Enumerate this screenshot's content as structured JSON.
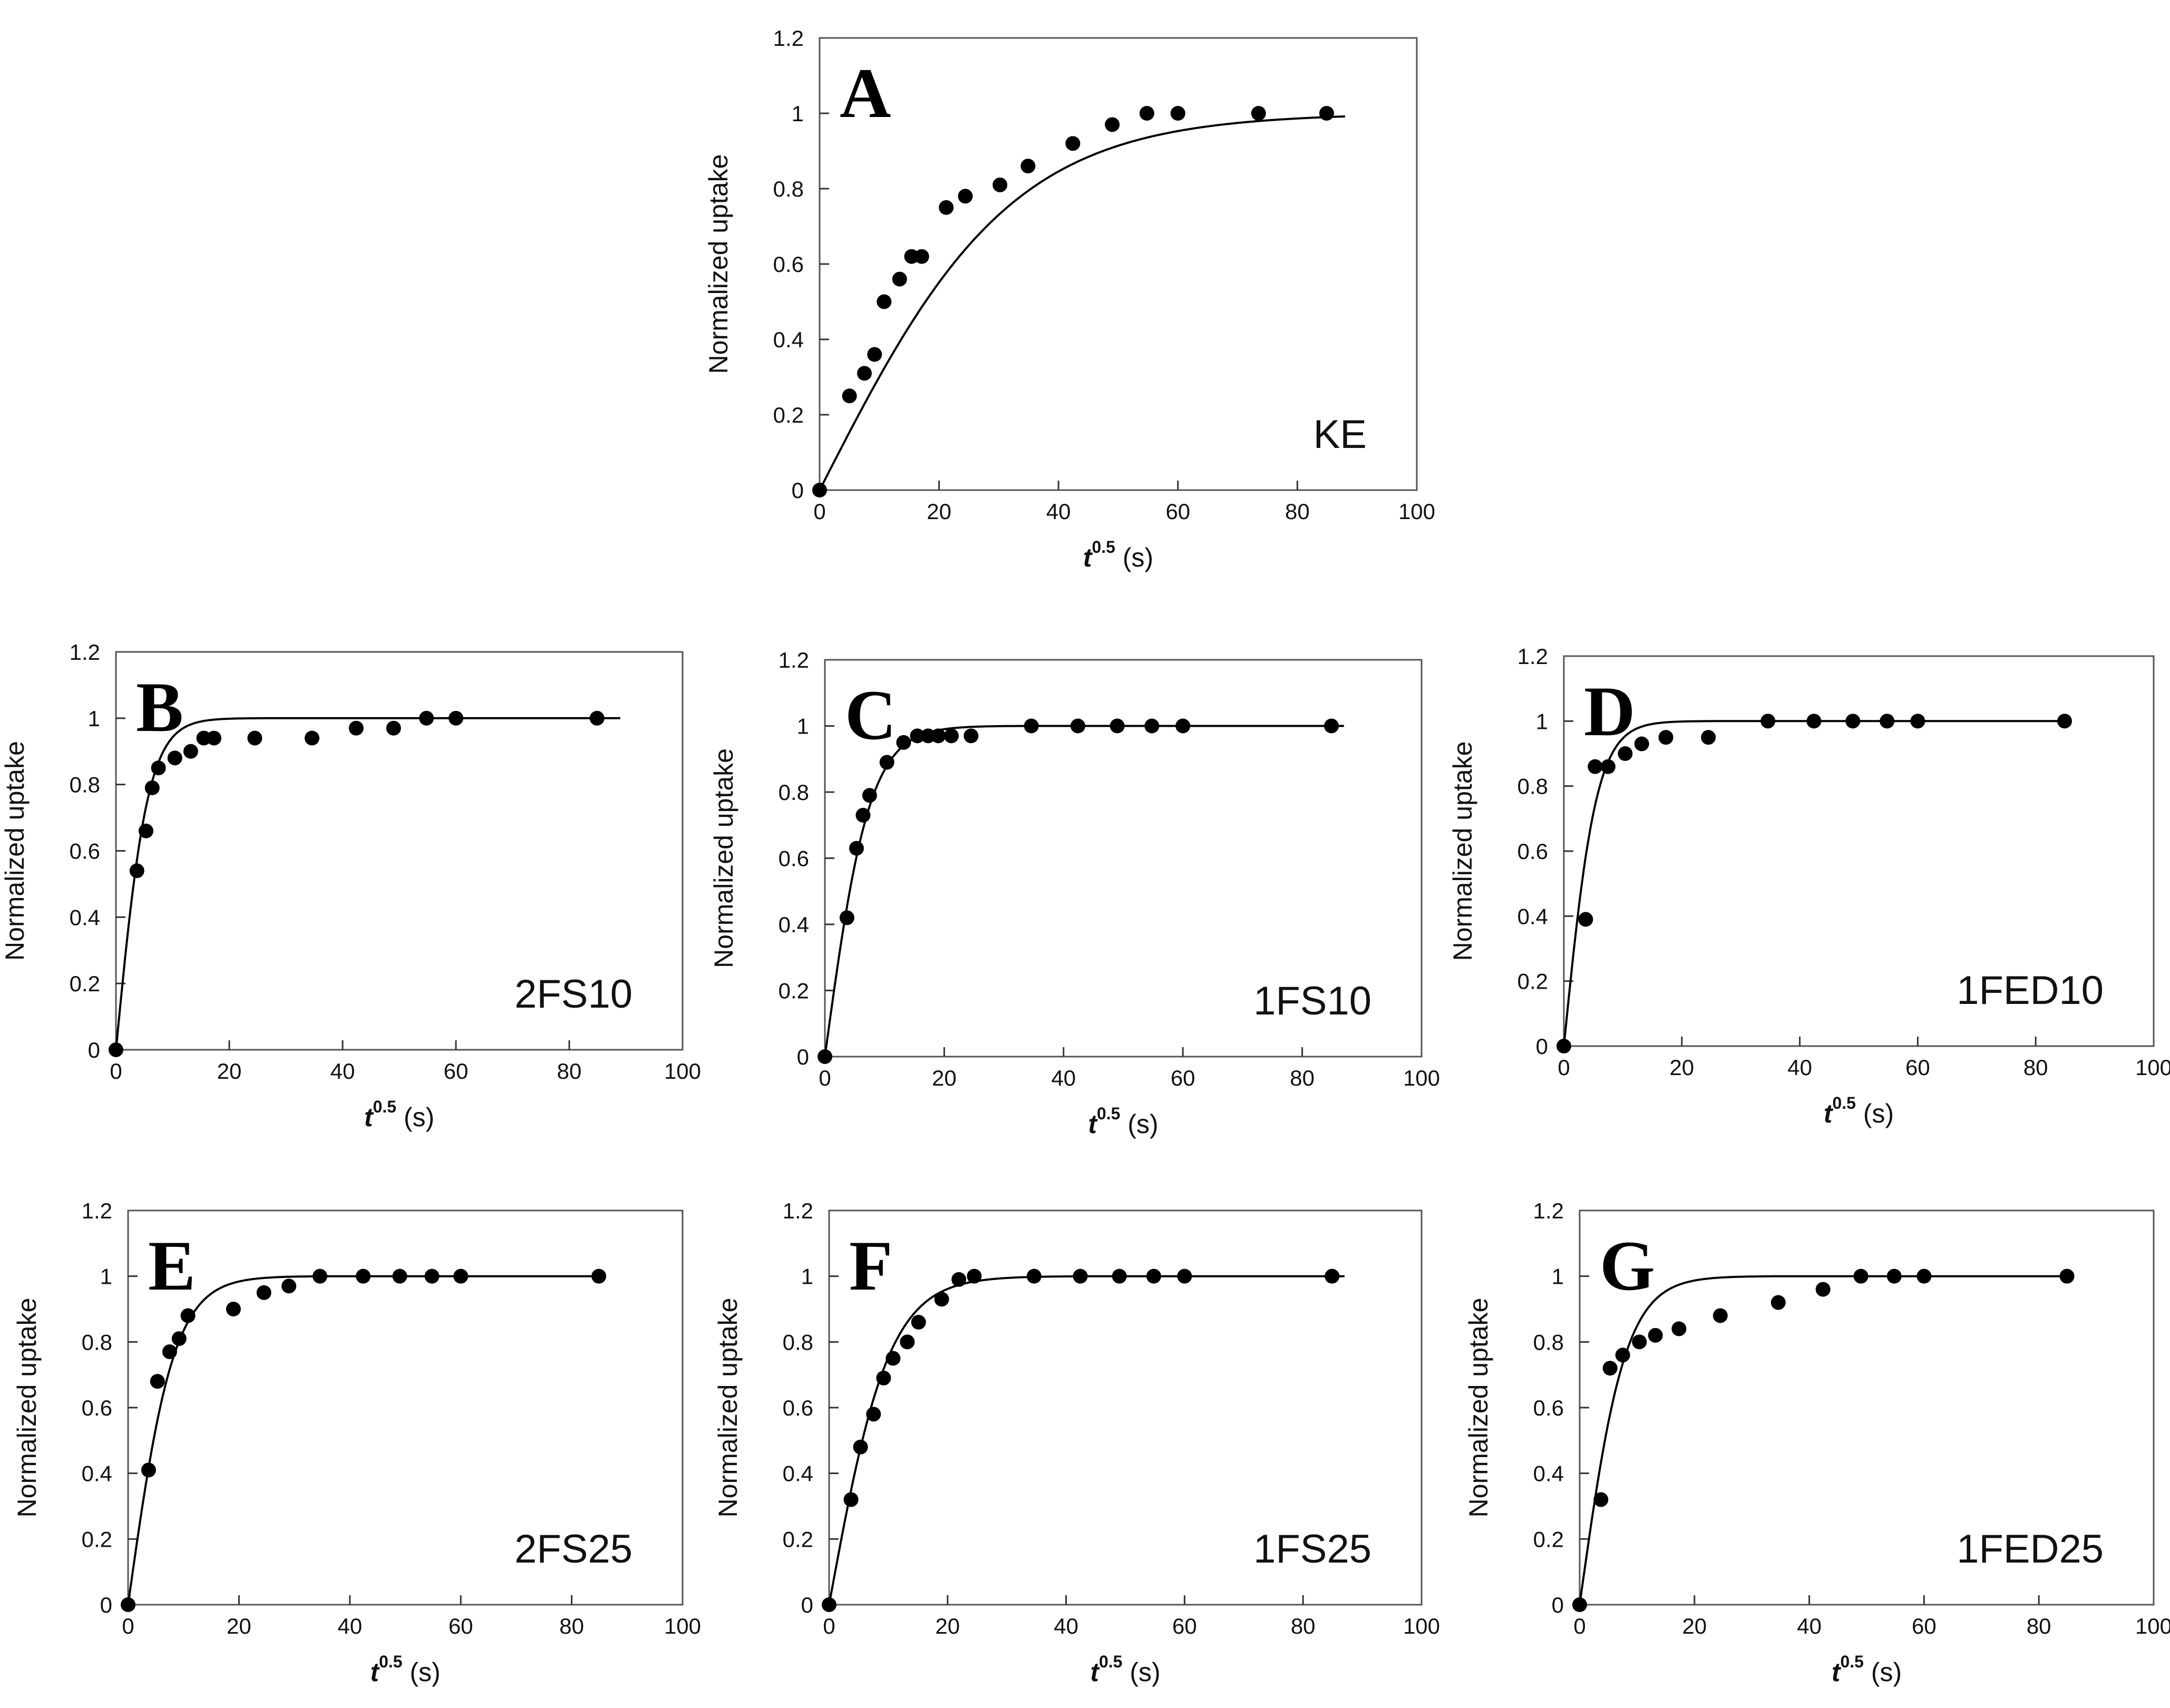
{
  "chart_data": [
    {
      "type": "scatter",
      "panel": "A",
      "label": "KE",
      "xlabel": "t",
      "xlabel_sup": "0.5",
      "xlabel_unit": " (s)",
      "ylabel": "Normalized uptake",
      "xlim": [
        0,
        100
      ],
      "ylim": [
        0,
        1.2
      ],
      "xticks": [
        "0",
        "20",
        "40",
        "60",
        "80",
        "100"
      ],
      "yticks": [
        "0",
        "0.2",
        "0.4",
        "0.6",
        "0.8",
        "1",
        "1.2"
      ],
      "series": [
        {
          "kind": "points",
          "x": [
            0,
            5,
            7.5,
            9.2,
            10.8,
            13.4,
            15.4,
            17.1,
            21.2,
            24.4,
            30.2,
            34.9,
            42.4,
            49,
            54.8,
            60,
            73.5,
            84.9
          ],
          "y": [
            0,
            0.25,
            0.31,
            0.36,
            0.5,
            0.56,
            0.62,
            0.62,
            0.75,
            0.78,
            0.81,
            0.86,
            0.92,
            0.97,
            1,
            1,
            1,
            1
          ]
        },
        {
          "kind": "fit",
          "k": 0.031,
          "xmax": 88
        }
      ]
    },
    {
      "type": "scatter",
      "panel": "B",
      "label": "2FS10",
      "xlabel": "t",
      "xlabel_sup": "0.5",
      "xlabel_unit": " (s)",
      "ylabel": "Normalized uptake",
      "xlim": [
        0,
        100
      ],
      "ylim": [
        0,
        1.2
      ],
      "xticks": [
        "0",
        "20",
        "40",
        "60",
        "80",
        "100"
      ],
      "yticks": [
        "0",
        "0.2",
        "0.4",
        "0.6",
        "0.8",
        "1",
        "1.2"
      ],
      "series": [
        {
          "kind": "points",
          "x": [
            0,
            3.7,
            5.3,
            6.4,
            7.5,
            10.4,
            13.2,
            15.5,
            17.3,
            24.5,
            34.6,
            42.4,
            49,
            54.8,
            60,
            84.9
          ],
          "y": [
            0,
            0.54,
            0.66,
            0.79,
            0.85,
            0.88,
            0.9,
            0.94,
            0.94,
            0.94,
            0.94,
            0.97,
            0.97,
            1,
            1,
            1
          ]
        },
        {
          "kind": "fit",
          "k": 0.176,
          "xmax": 89
        }
      ]
    },
    {
      "type": "scatter",
      "panel": "C",
      "label": "1FS10",
      "xlabel": "t",
      "xlabel_sup": "0.5",
      "xlabel_unit": " (s)",
      "ylabel": "Normalized uptake",
      "xlim": [
        0,
        100
      ],
      "ylim": [
        0,
        1.2
      ],
      "xticks": [
        "0",
        "20",
        "40",
        "60",
        "80",
        "100"
      ],
      "yticks": [
        "0",
        "0.2",
        "0.4",
        "0.6",
        "0.8",
        "1",
        "1.2"
      ],
      "series": [
        {
          "kind": "points",
          "x": [
            0,
            3.7,
            5.3,
            6.4,
            7.5,
            10.4,
            13.2,
            15.5,
            17.3,
            19,
            21.2,
            24.5,
            34.6,
            42.4,
            49,
            54.8,
            60,
            84.9
          ],
          "y": [
            0,
            0.42,
            0.63,
            0.73,
            0.79,
            0.89,
            0.95,
            0.97,
            0.97,
            0.97,
            0.97,
            0.97,
            1,
            1,
            1,
            1,
            1,
            1
          ]
        },
        {
          "kind": "fit",
          "k": 0.132,
          "xmax": 87
        }
      ]
    },
    {
      "type": "scatter",
      "panel": "D",
      "label": "1FED10",
      "xlabel": "t",
      "xlabel_sup": "0.5",
      "xlabel_unit": " (s)",
      "ylabel": "Normalized uptake",
      "xlim": [
        0,
        100
      ],
      "ylim": [
        0,
        1.2
      ],
      "xticks": [
        "0",
        "20",
        "40",
        "60",
        "80",
        "100"
      ],
      "yticks": [
        "0",
        "0.2",
        "0.4",
        "0.6",
        "0.8",
        "1",
        "1.2"
      ],
      "series": [
        {
          "kind": "points",
          "x": [
            0,
            3.7,
            5.3,
            7.5,
            10.4,
            13.2,
            17.3,
            24.5,
            34.6,
            42.4,
            49,
            54.8,
            60,
            84.9
          ],
          "y": [
            0,
            0.39,
            0.86,
            0.86,
            0.9,
            0.93,
            0.95,
            0.95,
            1,
            1,
            1,
            1,
            1,
            1
          ]
        },
        {
          "kind": "fit",
          "k": 0.18,
          "xmax": 85
        }
      ]
    },
    {
      "type": "scatter",
      "panel": "E",
      "label": "2FS25",
      "xlabel": "t",
      "xlabel_sup": "0.5",
      "xlabel_unit": " (s)",
      "ylabel": "Normalized uptake",
      "xlim": [
        0,
        100
      ],
      "ylim": [
        0,
        1.2
      ],
      "xticks": [
        "0",
        "20",
        "40",
        "60",
        "80",
        "100"
      ],
      "yticks": [
        "0",
        "0.2",
        "0.4",
        "0.6",
        "0.8",
        "1",
        "1.2"
      ],
      "series": [
        {
          "kind": "points",
          "x": [
            0,
            3.7,
            5.3,
            7.5,
            9.2,
            10.8,
            19,
            24.5,
            29,
            34.6,
            42.4,
            49,
            54.8,
            60,
            84.9
          ],
          "y": [
            0,
            0.41,
            0.68,
            0.77,
            0.81,
            0.88,
            0.9,
            0.95,
            0.97,
            1,
            1,
            1,
            1,
            1,
            1
          ]
        },
        {
          "kind": "fit",
          "k": 0.12,
          "xmax": 86
        }
      ]
    },
    {
      "type": "scatter",
      "panel": "F",
      "label": "1FS25",
      "xlabel": "t",
      "xlabel_sup": "0.5",
      "xlabel_unit": " (s)",
      "ylabel": "Normalized uptake",
      "xlim": [
        0,
        100
      ],
      "ylim": [
        0,
        1.2
      ],
      "xticks": [
        "0",
        "20",
        "40",
        "60",
        "80",
        "100"
      ],
      "yticks": [
        "0",
        "0.2",
        "0.4",
        "0.6",
        "0.8",
        "1",
        "1.2"
      ],
      "series": [
        {
          "kind": "points",
          "x": [
            0,
            3.7,
            5.3,
            7.5,
            9.2,
            10.8,
            13.2,
            15.1,
            19,
            21.9,
            24.5,
            34.6,
            42.4,
            49,
            54.8,
            60,
            84.9
          ],
          "y": [
            0,
            0.32,
            0.48,
            0.58,
            0.69,
            0.75,
            0.8,
            0.86,
            0.93,
            0.99,
            1,
            1,
            1,
            1,
            1,
            1,
            1
          ]
        },
        {
          "kind": "fit",
          "k": 0.098,
          "xmax": 87
        }
      ]
    },
    {
      "type": "scatter",
      "panel": "G",
      "label": "1FED25",
      "xlabel": "t",
      "xlabel_sup": "0.5",
      "xlabel_unit": " (s)",
      "ylabel": "Normalized uptake",
      "xlim": [
        0,
        100
      ],
      "ylim": [
        0,
        1.2
      ],
      "xticks": [
        "0",
        "20",
        "40",
        "60",
        "80",
        "100"
      ],
      "yticks": [
        "0",
        "0.2",
        "0.4",
        "0.6",
        "0.8",
        "1",
        "1.2"
      ],
      "series": [
        {
          "kind": "points",
          "x": [
            0,
            3.7,
            5.3,
            7.5,
            10.4,
            13.2,
            17.3,
            24.5,
            34.6,
            42.4,
            49,
            54.8,
            60,
            84.9
          ],
          "y": [
            0,
            0.32,
            0.72,
            0.76,
            0.8,
            0.82,
            0.84,
            0.88,
            0.92,
            0.96,
            1,
            1,
            1,
            1
          ]
        },
        {
          "kind": "fit",
          "k": 0.125,
          "xmax": 85
        }
      ]
    }
  ]
}
